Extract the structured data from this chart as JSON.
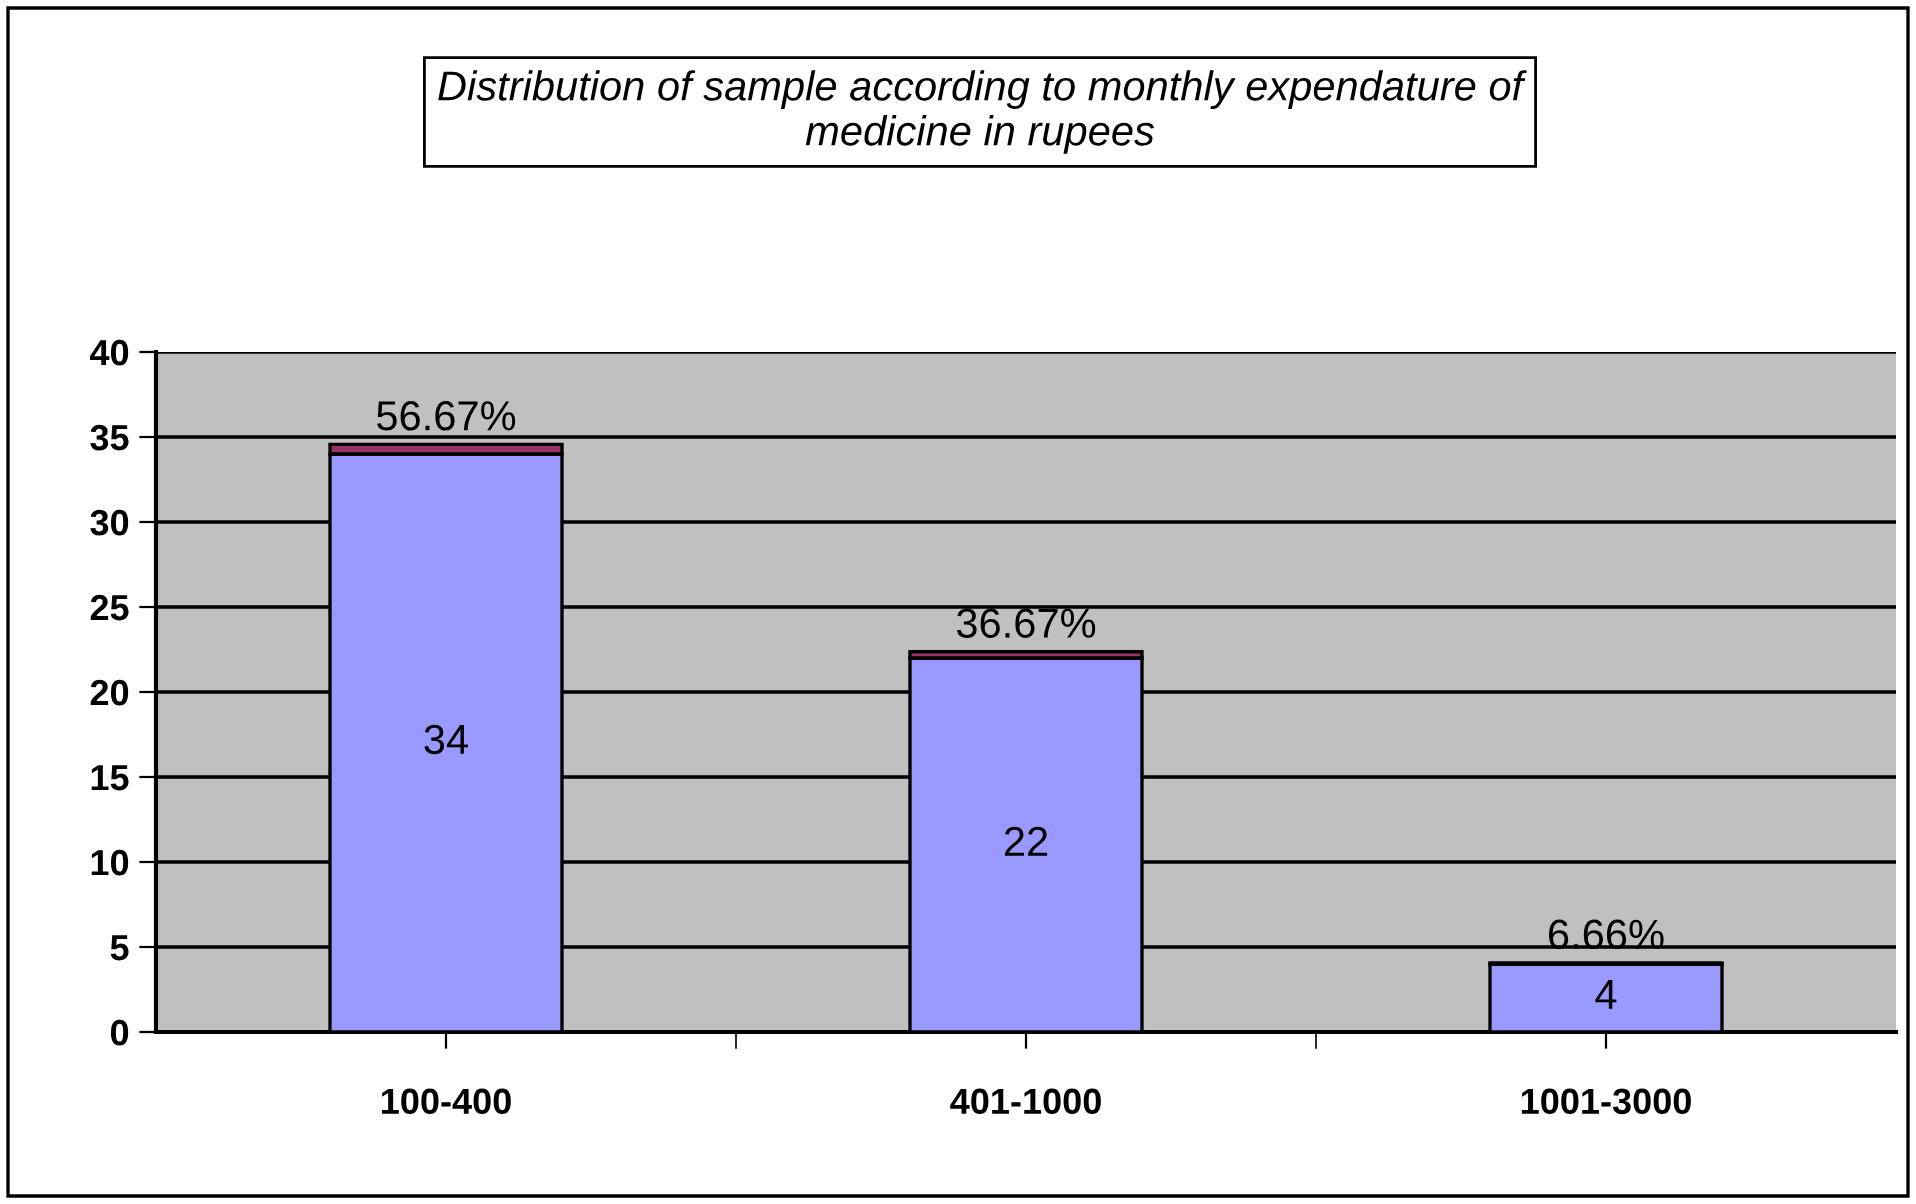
{
  "chart_data": {
    "type": "bar",
    "title": "Distribution of sample according to monthly expendature of\nmedicine in rupees",
    "categories": [
      "100-400",
      "401-1000",
      "1001-3000"
    ],
    "stacked": true,
    "series": [
      {
        "color": "#9999ff",
        "values": [
          34,
          22,
          4
        ],
        "value_labels": [
          "34",
          "22",
          "4"
        ]
      },
      {
        "color": "#993366",
        "values": [
          0.5667,
          0.3667,
          0.0666
        ],
        "value_labels": [
          "56.67%",
          "36.67%",
          "6.66%"
        ]
      }
    ],
    "ylim": [
      0,
      40
    ],
    "yticks": [
      0,
      5,
      10,
      15,
      20,
      25,
      30,
      35,
      40
    ],
    "grid": "y",
    "legend": false
  }
}
